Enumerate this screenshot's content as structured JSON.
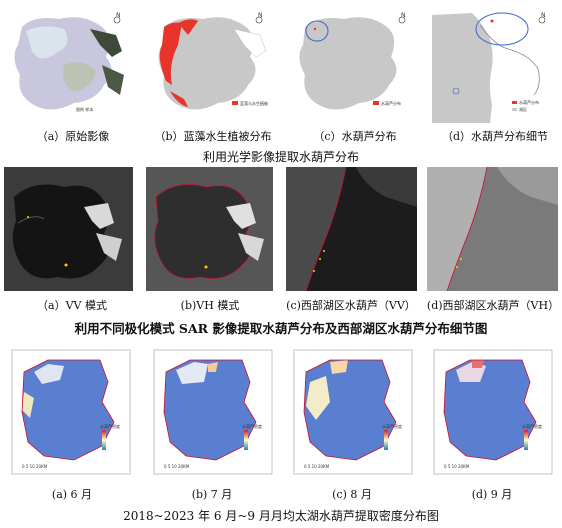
{
  "row1": {
    "captions": [
      "（a）原始影像",
      "（b）蓝藻水生植被分布",
      "（c）水葫芦分布",
      "（d）水葫芦分布细节"
    ],
    "title": "利用光学影像提取水葫芦分布"
  },
  "row2": {
    "captions": [
      "（a）VV 模式",
      "(b)VH 模式",
      "(c)西部湖区水葫芦（VV）",
      "(d)西部湖区水葫芦（VH）"
    ],
    "title": "利用不同极化模式 SAR 影像提取水葫芦分布及西部湖区水葫芦分布细节图"
  },
  "row3": {
    "captions": [
      "(a) 6 月",
      "(b) 7 月",
      "(c) 8 月",
      "(d) 9 月"
    ],
    "title": "2018~2023 年 6 月~9 月月均太湖水葫芦提取密度分布图"
  },
  "colors": {
    "lake_gray": "#c8c8c8",
    "algae_red": "#e8352b",
    "sar_dark": "#2a2a2a",
    "density_low": "#4a6fc4",
    "density_high": "#f0e6c0",
    "boundary": "#c8102e"
  },
  "icons": [
    "north-arrow-icon",
    "legend-swatch"
  ]
}
